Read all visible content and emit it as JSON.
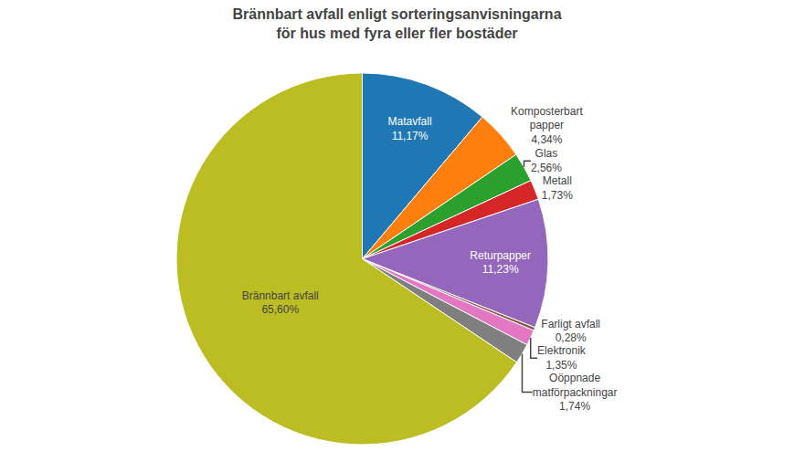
{
  "chart_data": {
    "type": "pie",
    "title": "Brännbart avfall enligt sorteringsanvisningarna\nför hus med fyra eller fler bostäder",
    "categories": [
      "Matavfall",
      "Komposterbart\npapper",
      "Glas",
      "Metall",
      "Returpapper",
      "Farligt avfall",
      "Elektronik",
      "Oöppnade\nmatförpackningar",
      "Brännbart avfall"
    ],
    "values": [
      11.17,
      4.34,
      2.56,
      1.73,
      11.23,
      0.28,
      1.35,
      1.74,
      65.6
    ],
    "value_labels": [
      "11,17%",
      "4,34%",
      "2,56%",
      "1,73%",
      "11,23%",
      "0,28%",
      "1,35%",
      "1,74%",
      "65,60%"
    ],
    "data_labels": true
  }
}
